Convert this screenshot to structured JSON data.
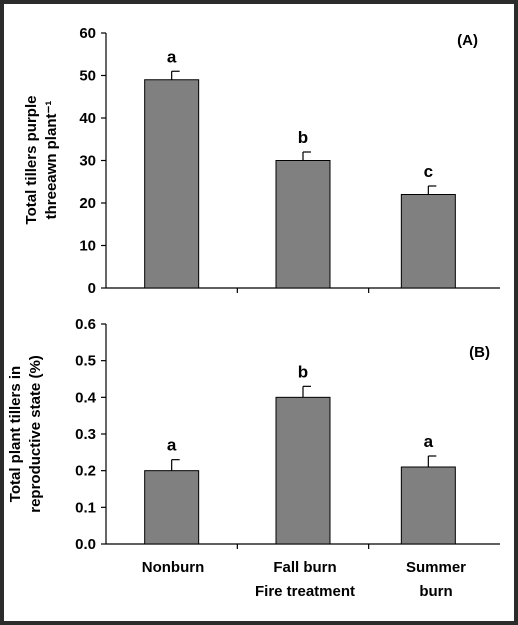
{
  "chart_data": [
    {
      "type": "bar",
      "panel_label": "(A)",
      "ylabel_lines": [
        "Total tillers purple",
        "threeawn plant⁻¹"
      ],
      "categories": [
        "Nonburn",
        "Fall burn",
        "Summer burn"
      ],
      "values": [
        49,
        30,
        22
      ],
      "error": [
        2,
        2,
        2
      ],
      "letters": [
        "a",
        "b",
        "c"
      ],
      "ylim": [
        0,
        60
      ],
      "yticks": [
        "0",
        "10",
        "20",
        "30",
        "40",
        "50",
        "60"
      ],
      "bar_color": "#808080"
    },
    {
      "type": "bar",
      "panel_label": "(B)",
      "ylabel_lines": [
        "Total plant tillers in",
        "reproductive state (%)"
      ],
      "categories": [
        "Nonburn",
        "Fall burn",
        "Summer burn"
      ],
      "values": [
        0.2,
        0.4,
        0.21
      ],
      "error": [
        0.03,
        0.03,
        0.03
      ],
      "letters": [
        "a",
        "b",
        "a"
      ],
      "ylim": [
        0,
        0.6
      ],
      "yticks": [
        "0.0",
        "0.1",
        "0.2",
        "0.3",
        "0.4",
        "0.5",
        "0.6"
      ],
      "bar_color": "#808080"
    }
  ],
  "x_tick_lines": [
    [
      "Nonburn"
    ],
    [
      "Fall burn"
    ],
    [
      "Summer",
      "burn"
    ]
  ],
  "xlabel": "Fire treatment"
}
